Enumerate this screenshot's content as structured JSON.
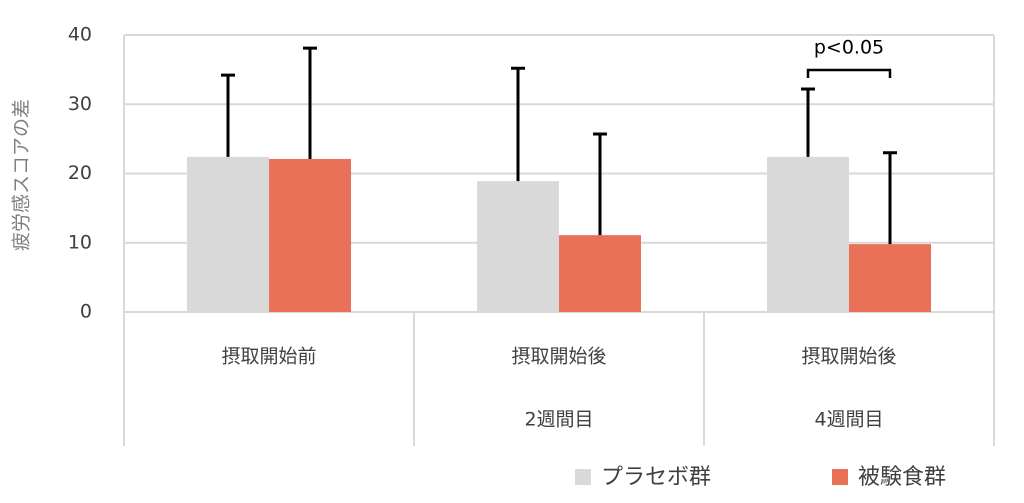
{
  "chart_data": {
    "type": "bar",
    "y_axis_label": "疲労感スコアの差",
    "categories": [
      "摂取開始前",
      "摂取開始後",
      "摂取開始後"
    ],
    "category_sublabels": [
      null,
      "2週間目",
      "4週間目"
    ],
    "series": [
      {
        "name": "プラセボ群",
        "color": "#d9d9d9",
        "values": [
          22.4,
          18.9,
          22.4
        ],
        "errors": [
          11.8,
          16.3,
          9.8
        ]
      },
      {
        "name": "被験食群",
        "color": "#e97157",
        "values": [
          22.1,
          11.1,
          9.8
        ],
        "errors": [
          16.0,
          14.6,
          13.2
        ]
      }
    ],
    "ylim": [
      0,
      40
    ],
    "yticks": [
      0,
      10,
      20,
      30,
      40
    ],
    "grid": true,
    "annotation": {
      "text": "p<0.05",
      "category": 2
    }
  }
}
